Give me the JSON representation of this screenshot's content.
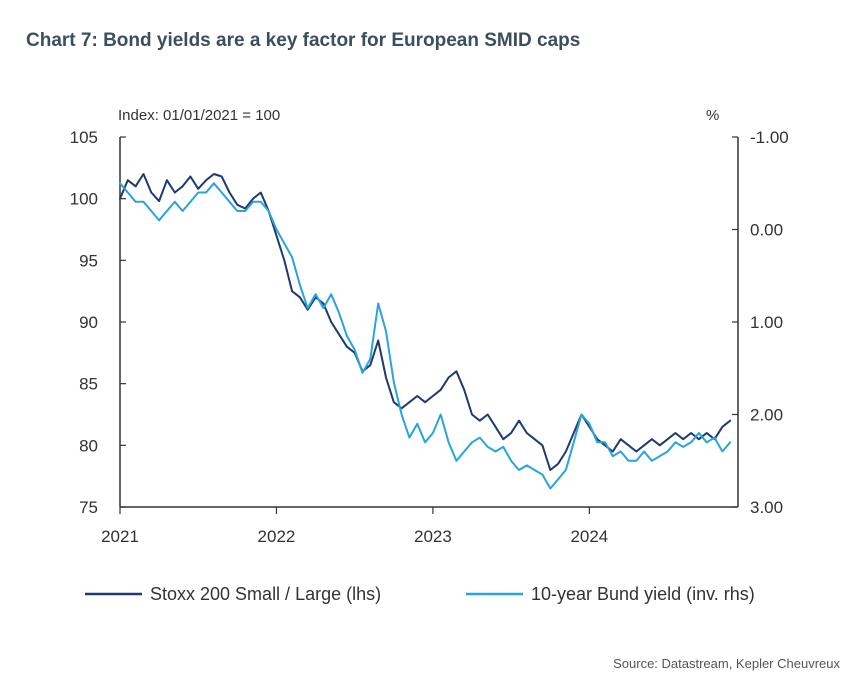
{
  "title": "Chart 7: Bond yields are a key factor for European SMID caps",
  "source": "Source: Datastream, Kepler Cheuvreux",
  "colors": {
    "title": "#3b4f5f",
    "series_lhs": "#1f3a6e",
    "series_rhs": "#2aa4dc",
    "axis": "#333333"
  },
  "chart_data": {
    "type": "line",
    "left_axis_caption": "Index: 01/01/2021 = 100",
    "right_axis_caption": "%",
    "ylim_left": [
      75,
      105
    ],
    "ylim_right": [
      -1.0,
      3.0
    ],
    "right_axis_inverted": true,
    "y_ticks_left": [
      "105",
      "100",
      "95",
      "90",
      "85",
      "80",
      "75"
    ],
    "y_ticks_right": [
      "-1.00",
      "0.00",
      "1.00",
      "2.00",
      "3.00"
    ],
    "x_range": [
      2021.0,
      2024.95
    ],
    "x_ticks": [
      "2021",
      "2022",
      "2023",
      "2024"
    ],
    "grid": false,
    "legend_position": "bottom",
    "series": [
      {
        "name": "Stoxx 200 Small / Large (lhs)",
        "axis": "left",
        "x": [
          2021.0,
          2021.05,
          2021.1,
          2021.15,
          2021.2,
          2021.25,
          2021.3,
          2021.35,
          2021.4,
          2021.45,
          2021.5,
          2021.55,
          2021.6,
          2021.65,
          2021.7,
          2021.75,
          2021.8,
          2021.85,
          2021.9,
          2021.95,
          2022.0,
          2022.05,
          2022.1,
          2022.15,
          2022.2,
          2022.25,
          2022.3,
          2022.35,
          2022.4,
          2022.45,
          2022.5,
          2022.55,
          2022.6,
          2022.65,
          2022.7,
          2022.75,
          2022.8,
          2022.85,
          2022.9,
          2022.95,
          2023.0,
          2023.05,
          2023.1,
          2023.15,
          2023.2,
          2023.25,
          2023.3,
          2023.35,
          2023.4,
          2023.45,
          2023.5,
          2023.55,
          2023.6,
          2023.65,
          2023.7,
          2023.75,
          2023.8,
          2023.85,
          2023.9,
          2023.95,
          2024.0,
          2024.05,
          2024.1,
          2024.15,
          2024.2,
          2024.25,
          2024.3,
          2024.35,
          2024.4,
          2024.45,
          2024.5,
          2024.55,
          2024.6,
          2024.65,
          2024.7,
          2024.75,
          2024.8,
          2024.85,
          2024.9
        ],
        "values": [
          100.0,
          101.5,
          101.0,
          102.0,
          100.5,
          99.8,
          101.5,
          100.5,
          101.0,
          101.8,
          100.8,
          101.5,
          102.0,
          101.8,
          100.5,
          99.5,
          99.2,
          100.0,
          100.5,
          99.0,
          97.0,
          95.0,
          92.5,
          92.0,
          91.0,
          92.0,
          91.5,
          90.0,
          89.0,
          88.0,
          87.5,
          86.0,
          86.5,
          88.5,
          85.5,
          83.5,
          83.0,
          83.5,
          84.0,
          83.5,
          84.0,
          84.5,
          85.5,
          86.0,
          84.5,
          82.5,
          82.0,
          82.5,
          81.5,
          80.5,
          81.0,
          82.0,
          81.0,
          80.5,
          80.0,
          78.0,
          78.5,
          79.5,
          81.0,
          82.5,
          81.5,
          80.5,
          80.0,
          79.5,
          80.5,
          80.0,
          79.5,
          80.0,
          80.5,
          80.0,
          80.5,
          81.0,
          80.5,
          81.0,
          80.5,
          81.0,
          80.5,
          81.5,
          82.0
        ]
      },
      {
        "name": "10-year Bund yield (inv. rhs)",
        "axis": "right",
        "x": [
          2021.0,
          2021.05,
          2021.1,
          2021.15,
          2021.2,
          2021.25,
          2021.3,
          2021.35,
          2021.4,
          2021.45,
          2021.5,
          2021.55,
          2021.6,
          2021.65,
          2021.7,
          2021.75,
          2021.8,
          2021.85,
          2021.9,
          2021.95,
          2022.0,
          2022.05,
          2022.1,
          2022.15,
          2022.2,
          2022.25,
          2022.3,
          2022.35,
          2022.4,
          2022.45,
          2022.5,
          2022.55,
          2022.6,
          2022.65,
          2022.7,
          2022.75,
          2022.8,
          2022.85,
          2022.9,
          2022.95,
          2023.0,
          2023.05,
          2023.1,
          2023.15,
          2023.2,
          2023.25,
          2023.3,
          2023.35,
          2023.4,
          2023.45,
          2023.5,
          2023.55,
          2023.6,
          2023.65,
          2023.7,
          2023.75,
          2023.8,
          2023.85,
          2023.9,
          2023.95,
          2024.0,
          2024.05,
          2024.1,
          2024.15,
          2024.2,
          2024.25,
          2024.3,
          2024.35,
          2024.4,
          2024.45,
          2024.5,
          2024.55,
          2024.6,
          2024.65,
          2024.7,
          2024.75,
          2024.8,
          2024.85,
          2024.9
        ],
        "values": [
          -0.5,
          -0.4,
          -0.3,
          -0.3,
          -0.2,
          -0.1,
          -0.2,
          -0.3,
          -0.2,
          -0.3,
          -0.4,
          -0.4,
          -0.5,
          -0.4,
          -0.3,
          -0.2,
          -0.2,
          -0.3,
          -0.3,
          -0.2,
          0.0,
          0.15,
          0.3,
          0.6,
          0.85,
          0.7,
          0.85,
          0.7,
          0.9,
          1.15,
          1.3,
          1.55,
          1.4,
          0.8,
          1.1,
          1.65,
          2.0,
          2.25,
          2.1,
          2.3,
          2.2,
          2.0,
          2.3,
          2.5,
          2.4,
          2.3,
          2.25,
          2.35,
          2.4,
          2.35,
          2.5,
          2.6,
          2.55,
          2.6,
          2.65,
          2.8,
          2.7,
          2.6,
          2.3,
          2.0,
          2.1,
          2.3,
          2.3,
          2.45,
          2.4,
          2.5,
          2.5,
          2.4,
          2.5,
          2.45,
          2.4,
          2.3,
          2.35,
          2.3,
          2.2,
          2.3,
          2.25,
          2.4,
          2.3
        ]
      }
    ]
  }
}
